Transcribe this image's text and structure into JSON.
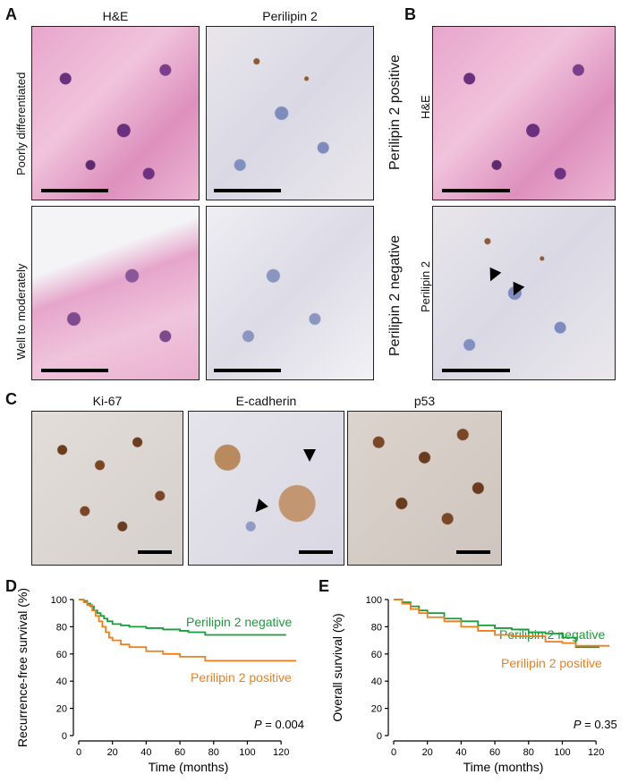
{
  "panelA": {
    "letter": "A",
    "col1": "H&E",
    "col2": "Perilipin 2",
    "row1": "Poorly differentiated",
    "row2": "Well to moderately"
  },
  "panelB": {
    "letter": "B",
    "side1": "Perilipin 2 positive",
    "side2": "Perilipin 2 negative",
    "row1": "H&E",
    "row2": "Perilipin 2"
  },
  "panelC": {
    "letter": "C",
    "col1": "Ki-67",
    "col2": "E-cadherin",
    "col3": "p53"
  },
  "chart_data": [
    {
      "panel": "D",
      "type": "line",
      "ylabel": "Recurrence-free survival (%)",
      "xlabel": "Time (months)",
      "xlim": [
        0,
        130
      ],
      "ylim": [
        0,
        100
      ],
      "xticks": [
        "0",
        "20",
        "40",
        "60",
        "80",
        "100",
        "120"
      ],
      "yticks": [
        "0",
        "20",
        "40",
        "60",
        "80",
        "100"
      ],
      "pvalue_label": "P",
      "pvalue_text": " = 0.004",
      "series": [
        {
          "name": "Perilipin 2 negative",
          "color": "#1a9c3a",
          "x": [
            0,
            3,
            5,
            7,
            9,
            11,
            13,
            15,
            17,
            20,
            25,
            30,
            40,
            50,
            60,
            65,
            75,
            90,
            100,
            105,
            123
          ],
          "y": [
            100,
            99,
            97,
            95,
            92,
            90,
            88,
            86,
            84,
            82,
            81,
            80,
            79,
            78,
            77,
            76,
            74,
            74,
            74,
            74,
            74
          ]
        },
        {
          "name": "Perilipin 2 positive",
          "color": "#f07e1d",
          "x": [
            0,
            3,
            5,
            8,
            10,
            12,
            14,
            16,
            18,
            20,
            25,
            30,
            40,
            50,
            60,
            73,
            75,
            90,
            110,
            129
          ],
          "y": [
            100,
            98,
            96,
            92,
            88,
            84,
            80,
            76,
            72,
            70,
            67,
            65,
            62,
            60,
            58,
            58,
            55,
            55,
            55,
            55
          ]
        }
      ]
    },
    {
      "panel": "E",
      "type": "line",
      "ylabel": "Overall survival (%)",
      "xlabel": "Time (months)",
      "xlim": [
        0,
        130
      ],
      "ylim": [
        0,
        100
      ],
      "xticks": [
        "0",
        "20",
        "40",
        "60",
        "80",
        "100",
        "120"
      ],
      "yticks": [
        "0",
        "20",
        "40",
        "60",
        "80",
        "100"
      ],
      "pvalue_label": "P",
      "pvalue_text": " = 0.35",
      "series": [
        {
          "name": "Perilipin 2 negative",
          "color": "#1a9c3a",
          "x": [
            0,
            5,
            10,
            15,
            20,
            30,
            40,
            50,
            60,
            70,
            80,
            90,
            100,
            106,
            108,
            115,
            122
          ],
          "y": [
            100,
            98,
            95,
            92,
            90,
            86,
            84,
            81,
            79,
            78,
            76,
            75,
            72,
            72,
            65,
            65,
            65
          ]
        },
        {
          "name": "Perilipin 2 positive",
          "color": "#f07e1d",
          "x": [
            0,
            5,
            10,
            15,
            20,
            30,
            40,
            50,
            60,
            70,
            80,
            90,
            100,
            106,
            108,
            120,
            128
          ],
          "y": [
            100,
            97,
            93,
            90,
            87,
            84,
            80,
            77,
            74,
            73,
            73,
            69,
            68,
            68,
            66,
            66,
            66
          ]
        }
      ]
    }
  ]
}
